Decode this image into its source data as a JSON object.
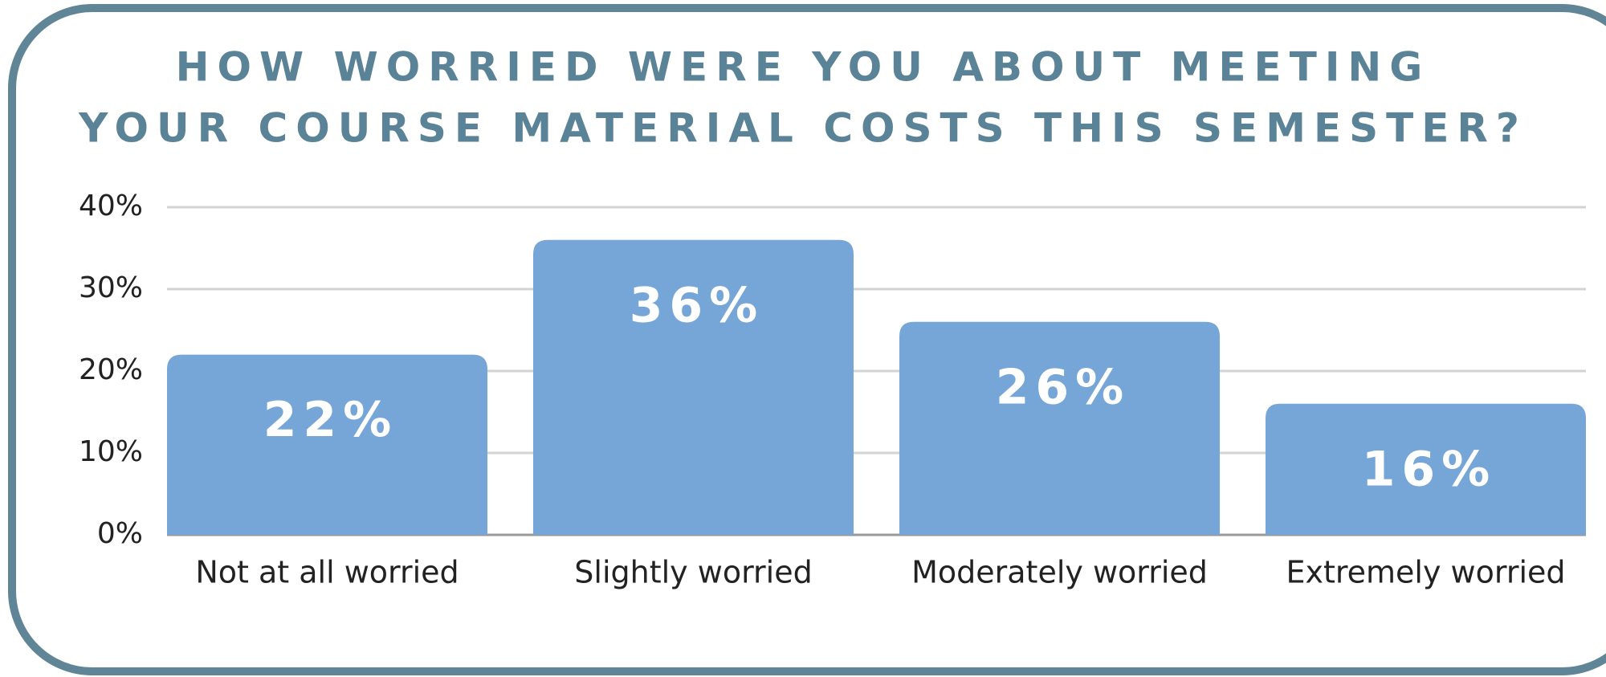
{
  "chart_data": {
    "type": "bar",
    "title": [
      "HOW WORRIED WERE YOU ABOUT MEETING",
      "YOUR COURSE MATERIAL COSTS THIS SEMESTER?"
    ],
    "categories": [
      "Not at all worried",
      "Slightly worried",
      "Moderately worried",
      "Extremely worried"
    ],
    "values": [
      22,
      36,
      26,
      16
    ],
    "value_labels": [
      "22%",
      "36%",
      "26%",
      "16%"
    ],
    "color": "#76a6d8",
    "ylim": [
      0,
      40
    ],
    "yticks": [
      {
        "value": 0,
        "label": "0%"
      },
      {
        "value": 10,
        "label": "10%"
      },
      {
        "value": 20,
        "label": "20%"
      },
      {
        "value": 30,
        "label": "30%"
      },
      {
        "value": 40,
        "label": "40%"
      }
    ],
    "grid": true
  }
}
